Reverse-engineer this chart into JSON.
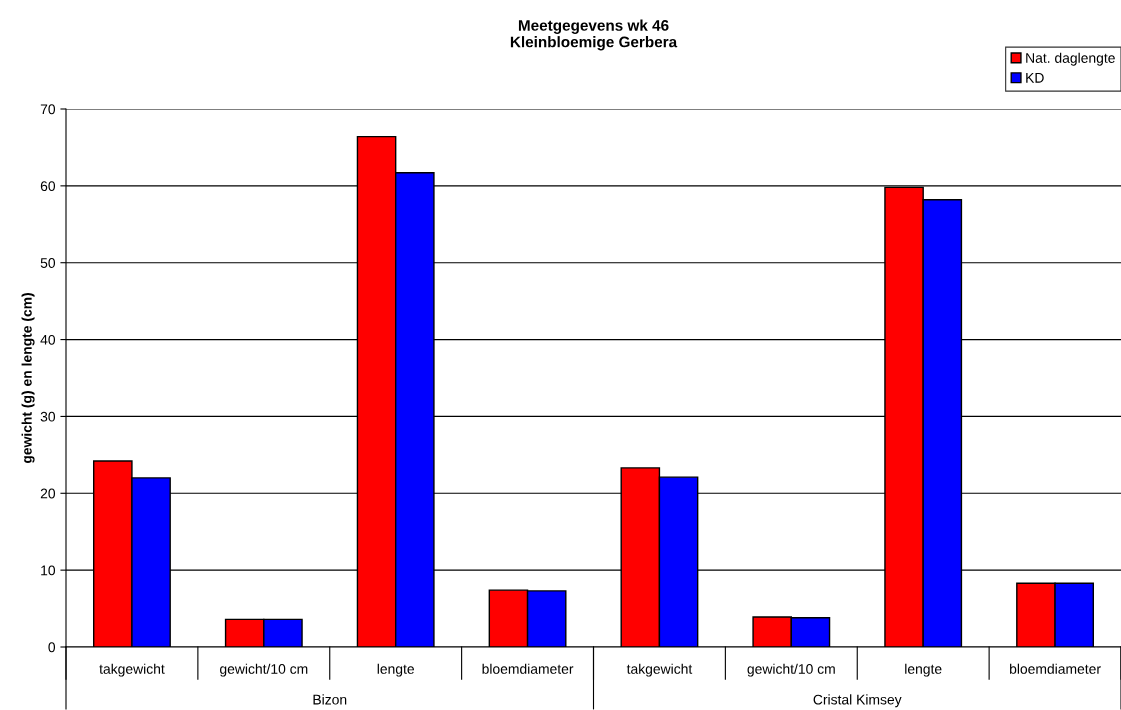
{
  "chart_data": {
    "type": "bar",
    "title": "Meetgegevens wk 46\nKleinbloemige Gerbera",
    "ylabel": "gewicht (g) en lengte (cm)",
    "categories": [
      "takgewicht",
      "gewicht/10 cm",
      "lengte",
      "bloemdiameter",
      "takgewicht",
      "gewicht/10 cm",
      "lengte",
      "bloemdiameter"
    ],
    "series": [
      {
        "name": "Nat. daglengte",
        "color": "#ff0000",
        "values": [
          24.2,
          3.6,
          66.4,
          7.4,
          23.3,
          3.9,
          59.8,
          8.3
        ]
      },
      {
        "name": "KD",
        "color": "#0000ff",
        "values": [
          22.0,
          3.6,
          61.7,
          7.3,
          22.1,
          3.8,
          58.2,
          8.3
        ]
      }
    ],
    "annotations": [
      "Bizon",
      "Cristal Kimsey"
    ],
    "ylim": [
      0,
      70
    ],
    "yticks": [
      0,
      10,
      20,
      30,
      40,
      50,
      60,
      70
    ],
    "grid": "y",
    "legend": "top right"
  }
}
